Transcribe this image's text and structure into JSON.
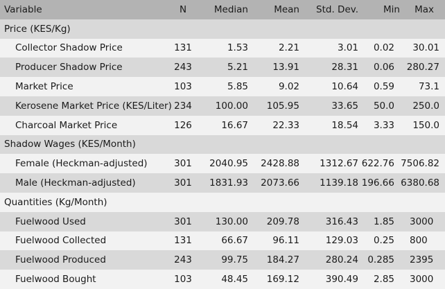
{
  "headers": [
    "Variable",
    "N",
    "Median",
    "Mean",
    "Std. Dev.",
    "Min",
    "Max"
  ],
  "rows": [
    {
      "type": "section",
      "label": "Price (KES/Kg)"
    },
    {
      "type": "row",
      "label": "Collector Shadow Price",
      "n": "131",
      "median": "1.53",
      "mean": "2.21",
      "sd": "3.01",
      "min": "0.02",
      "max": "30.01",
      "min_align": "r",
      "max_align": "r"
    },
    {
      "type": "row",
      "label": "Producer Shadow Price",
      "n": "243",
      "median": "5.21",
      "mean": "13.91",
      "sd": "28.31",
      "min": "0.06",
      "max": "280.27",
      "min_align": "r",
      "max_align": "r"
    },
    {
      "type": "row",
      "label": "Market Price",
      "n": "103",
      "median": "5.85",
      "mean": "9.02",
      "sd": "10.64",
      "min": "0.59",
      "max": "73.1",
      "min_align": "r",
      "max_align": "r"
    },
    {
      "type": "row",
      "label": "Kerosene Market Price (KES/Liter)",
      "n": "234",
      "median": "100.00",
      "mean": "105.95",
      "sd": "33.65",
      "min": "50.0",
      "max": "250.0",
      "min_align": "r",
      "max_align": "r"
    },
    {
      "type": "row",
      "label": "Charcoal Market Price",
      "n": "126",
      "median": "16.67",
      "mean": "22.33",
      "sd": "18.54",
      "min": "3.33",
      "max": "150.0",
      "min_align": "r",
      "max_align": "r"
    },
    {
      "type": "section",
      "label": "Shadow Wages (KES/Month)"
    },
    {
      "type": "row",
      "label": "Female (Heckman-adjusted)",
      "n": "301",
      "median": "2040.95",
      "mean": "2428.88",
      "sd": "1312.67",
      "min": "622.76",
      "max": "7506.82",
      "min_align": "r",
      "max_align": "r"
    },
    {
      "type": "row",
      "label": "Male (Heckman-adjusted)",
      "n": "301",
      "median": "1831.93",
      "mean": "2073.66",
      "sd": "1139.18",
      "min": "196.66",
      "max": "6380.68",
      "min_align": "r",
      "max_align": "r"
    },
    {
      "type": "section",
      "label": "Quantities (Kg/Month)"
    },
    {
      "type": "row",
      "label": "Fuelwood Used",
      "n": "301",
      "median": "130.00",
      "mean": "209.78",
      "sd": "316.43",
      "min": "1.85",
      "max": "3000",
      "min_align": "r",
      "max_align": "l"
    },
    {
      "type": "row",
      "label": "Fuelwood Collected",
      "n": "131",
      "median": "66.67",
      "mean": "96.11",
      "sd": "129.03",
      "min": "0.25",
      "max": "800",
      "min_align": "r",
      "max_align": "l"
    },
    {
      "type": "row",
      "label": "Fuelwood Produced",
      "n": "243",
      "median": "99.75",
      "mean": "184.27",
      "sd": "280.24",
      "min": "0.285",
      "max": "2395",
      "min_align": "r",
      "max_align": "l"
    },
    {
      "type": "row",
      "label": "Fuelwood Bought",
      "n": "103",
      "median": "48.45",
      "mean": "169.12",
      "sd": "390.49",
      "min": "2.85",
      "max": "3000",
      "min_align": "r",
      "max_align": "l"
    }
  ]
}
